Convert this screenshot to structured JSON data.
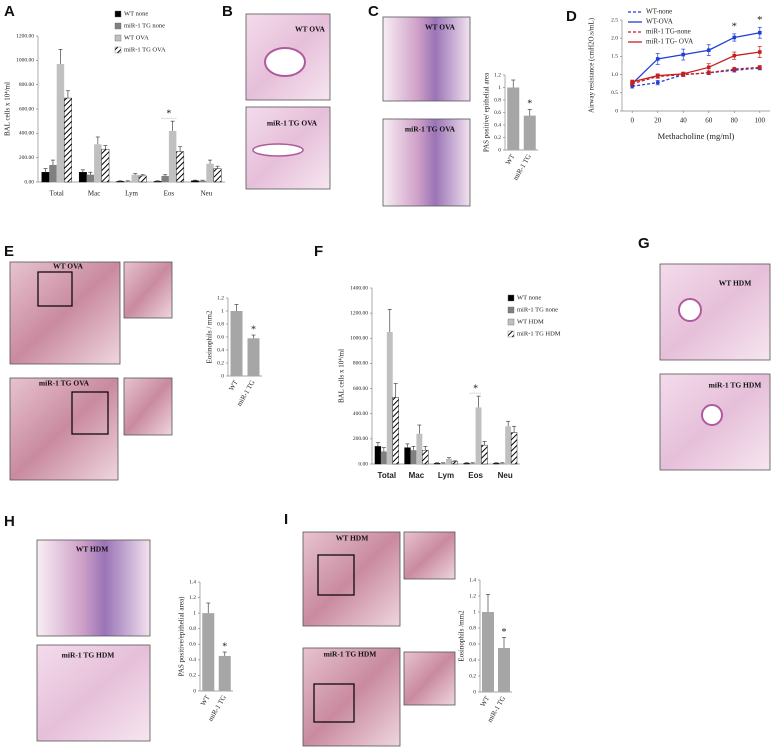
{
  "panel_letters": [
    "A",
    "B",
    "C",
    "D",
    "E",
    "F",
    "G",
    "H",
    "I"
  ],
  "micrographs": [
    "WT OVA",
    "miR-1 TG OVA",
    "WT OVA",
    "miR-1 TG OVA",
    "WT OVA",
    "miR-1 TG OVA",
    "WT HDM",
    "miR-1 TG HDM",
    "WT HDM",
    "miR-1 TG HDM",
    "WT HDM",
    "miR-1 TG HDM"
  ],
  "chart_data": [
    {
      "type": "bar",
      "y_label": "BAL cells x 10⁴/ml",
      "categories": [
        "Total",
        "Mac",
        "Lym",
        "Eos",
        "Neu"
      ],
      "series": [
        {
          "name": "WT none",
          "color": "#000000",
          "values": [
            80,
            80,
            5,
            5,
            10
          ],
          "errors": [
            30,
            20,
            5,
            5,
            5
          ]
        },
        {
          "name": "miR-1 TG none",
          "color": "#808080",
          "values": [
            140,
            60,
            5,
            50,
            10
          ],
          "errors": [
            40,
            20,
            5,
            10,
            5
          ]
        },
        {
          "name": "WT OVA",
          "color": "#c0c0c0",
          "values": [
            970,
            310,
            60,
            420,
            150
          ],
          "errors": [
            120,
            60,
            10,
            80,
            30
          ]
        },
        {
          "name": "miR-1 TG OVA",
          "color": "#ffffff",
          "hatch": true,
          "values": [
            690,
            270,
            50,
            250,
            110
          ],
          "errors": [
            60,
            30,
            10,
            40,
            20
          ]
        }
      ],
      "ylim": [
        0,
        1200
      ],
      "yticks": [
        {
          "value": 0,
          "label": "0.00"
        },
        {
          "value": 200,
          "label": "200.00"
        },
        {
          "value": 400,
          "label": "400.00"
        },
        {
          "value": 600,
          "label": "600.00"
        },
        {
          "value": 800,
          "label": "800.00"
        },
        {
          "value": 1000,
          "label": "1000.00"
        },
        {
          "value": 1200,
          "label": "1200.00"
        }
      ],
      "legend": "upper right",
      "annotations": [
        "*"
      ]
    },
    {
      "type": "bar",
      "y_label": "PAS positive/ epithelial area",
      "categories": [
        "WT",
        "miR-1 TG"
      ],
      "values": [
        1.0,
        0.55
      ],
      "errors": [
        0.12,
        0.1
      ],
      "color": "#a6a6a6",
      "ylim": [
        0,
        1.2
      ],
      "yticks": [
        0,
        0.2,
        0.4,
        0.6,
        0.8,
        1,
        1.2
      ],
      "annotations": [
        "*"
      ]
    },
    {
      "type": "line",
      "x_label": "Methacholine (mg/ml)",
      "y_label": "Airway resistance (cmH2O.s/mL)",
      "x": [
        0,
        20,
        40,
        60,
        80,
        100
      ],
      "series": [
        {
          "name": "WT-none",
          "color": "#1f3fd6",
          "dashed": true,
          "values": [
            0.68,
            0.78,
            1.0,
            1.05,
            1.12,
            1.18
          ],
          "errors": [
            0.05,
            0.06,
            0.05,
            0.05,
            0.05,
            0.05
          ]
        },
        {
          "name": "WT-OVA",
          "color": "#1f3fd6",
          "dashed": false,
          "values": [
            0.75,
            1.43,
            1.55,
            1.67,
            2.02,
            2.15
          ],
          "errors": [
            0.05,
            0.15,
            0.15,
            0.15,
            0.1,
            0.15
          ]
        },
        {
          "name": "miR-1 TG-none",
          "color": "#c81e1e",
          "dashed": true,
          "values": [
            0.75,
            0.95,
            1.0,
            1.05,
            1.15,
            1.2
          ],
          "errors": [
            0.05,
            0.05,
            0.05,
            0.05,
            0.05,
            0.05
          ]
        },
        {
          "name": "miR-1 TG- OVA",
          "color": "#c81e1e",
          "dashed": false,
          "values": [
            0.8,
            0.97,
            1.02,
            1.2,
            1.52,
            1.62
          ],
          "errors": [
            0.05,
            0.05,
            0.05,
            0.1,
            0.1,
            0.15
          ]
        }
      ],
      "xlim": [
        -8,
        108
      ],
      "xticks": [
        0,
        20,
        40,
        60,
        80,
        100
      ],
      "ylim": [
        0,
        2.5
      ],
      "yticks": [
        0,
        0.5,
        {
          "value": 1.0,
          "label": "1.0"
        },
        1.5,
        {
          "value": 2.0,
          "label": "2.0"
        },
        2.5
      ],
      "legend": "upper left",
      "annotations": [
        "*",
        "*"
      ]
    },
    {
      "type": "bar",
      "y_label": "Eosinophils / mm2",
      "categories": [
        "WT",
        "miR-1 TG"
      ],
      "values": [
        1.0,
        0.58
      ],
      "errors": [
        0.1,
        0.05
      ],
      "color": "#a6a6a6",
      "ylim": [
        0,
        1.2
      ],
      "yticks": [
        0,
        0.2,
        0.4,
        0.6,
        0.8,
        1,
        1.2
      ],
      "annotations": [
        "*"
      ]
    },
    {
      "type": "bar",
      "y_label": "BAL cells x 10⁴/ml",
      "categories": [
        "Total",
        "Mac",
        "Lym",
        "Eos",
        "Neu"
      ],
      "series": [
        {
          "name": "WT none",
          "color": "#000000",
          "values": [
            140,
            130,
            5,
            5,
            5
          ],
          "errors": [
            30,
            30,
            5,
            5,
            5
          ]
        },
        {
          "name": "miR-1 TG none",
          "color": "#808080",
          "values": [
            100,
            110,
            5,
            5,
            5
          ],
          "errors": [
            30,
            30,
            5,
            5,
            5
          ]
        },
        {
          "name": "WT HDM",
          "color": "#c0c0c0",
          "values": [
            1050,
            240,
            40,
            450,
            300
          ],
          "errors": [
            180,
            70,
            10,
            90,
            40
          ]
        },
        {
          "name": "miR-1 TG HDM",
          "color": "#ffffff",
          "hatch": true,
          "values": [
            530,
            110,
            20,
            150,
            250
          ],
          "errors": [
            110,
            30,
            5,
            30,
            50
          ]
        }
      ],
      "ylim": [
        0,
        1400
      ],
      "yticks": [
        {
          "value": 0,
          "label": "0.00"
        },
        {
          "value": 200,
          "label": "200.00"
        },
        {
          "value": 400,
          "label": "400.00"
        },
        {
          "value": 600,
          "label": "600.00"
        },
        {
          "value": 800,
          "label": "800.00"
        },
        {
          "value": 1000,
          "label": "1000.00"
        },
        {
          "value": 1200,
          "label": "1200.00"
        },
        {
          "value": 1400,
          "label": "1400.00"
        }
      ],
      "legend": "upper right",
      "annotations": [
        "*"
      ]
    },
    {
      "type": "bar",
      "y_label": "PAS positive/epithelial area)",
      "categories": [
        "WT",
        "miR-1 TG"
      ],
      "values": [
        1.0,
        0.45
      ],
      "errors": [
        0.13,
        0.05
      ],
      "color": "#a6a6a6",
      "ylim": [
        0,
        1.4
      ],
      "yticks": [
        0,
        0.2,
        0.4,
        0.6,
        0.8,
        1,
        1.2,
        1.4
      ],
      "annotations": [
        "*"
      ]
    },
    {
      "type": "bar",
      "y_label": "Eosinophils /mm2",
      "categories": [
        "WT",
        "miR-1 TG"
      ],
      "values": [
        1.0,
        0.55
      ],
      "errors": [
        0.22,
        0.13
      ],
      "color": "#a6a6a6",
      "ylim": [
        0,
        1.4
      ],
      "yticks": [
        0,
        0.2,
        0.4,
        0.6,
        0.8,
        1,
        1.2,
        1.4
      ],
      "annotations": [
        "*"
      ]
    }
  ]
}
